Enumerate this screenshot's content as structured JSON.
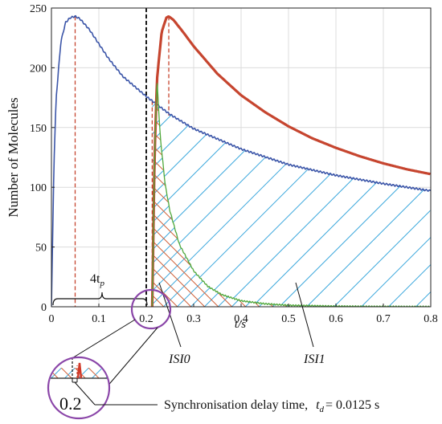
{
  "chart_data": {
    "type": "line",
    "ylabel": "Number of Molecules",
    "xlabel": "t/s",
    "xlim": [
      0,
      0.8
    ],
    "ylim": [
      0,
      250
    ],
    "x_ticks": [
      "0",
      "0.1",
      "0.2",
      "0.3",
      "0.4",
      "0.5",
      "0.6",
      "0.7",
      "0.8"
    ],
    "y_ticks": [
      "0",
      "50",
      "100",
      "150",
      "200",
      "250"
    ],
    "grid": true,
    "series": [
      {
        "color": "#3b55a8",
        "peak_t": 0.05,
        "peak": 243,
        "x": [
          0,
          0.005,
          0.01,
          0.02,
          0.03,
          0.04,
          0.05,
          0.06,
          0.08,
          0.1,
          0.12,
          0.15,
          0.2,
          0.25,
          0.3,
          0.4,
          0.5,
          0.6,
          0.7,
          0.8
        ],
        "y": [
          0,
          115,
          175,
          222,
          238,
          242,
          243,
          241,
          232,
          220,
          208,
          193,
          176,
          161,
          149,
          132,
          119,
          110,
          103,
          97
        ]
      },
      {
        "color": "#c6452f",
        "peak_t": 0.2475,
        "peak": 243,
        "x": [
          0.2125,
          0.2175,
          0.2225,
          0.2325,
          0.2425,
          0.2475,
          0.2575,
          0.2775,
          0.3,
          0.35,
          0.4,
          0.45,
          0.5,
          0.55,
          0.6,
          0.65,
          0.7,
          0.75,
          0.8
        ],
        "y": [
          0,
          125,
          190,
          230,
          242,
          243,
          240,
          230,
          218,
          195,
          177,
          163,
          151,
          141,
          133,
          126,
          120,
          115,
          111
        ]
      },
      {
        "color": "#4fa83a",
        "x": [
          0.2125,
          0.2175,
          0.2225,
          0.23,
          0.24,
          0.25,
          0.27,
          0.3,
          0.33,
          0.36,
          0.4,
          0.45,
          0.5,
          0.6,
          0.7,
          0.8
        ],
        "y": [
          0,
          125,
          190,
          140,
          102,
          80,
          52,
          30,
          17,
          10,
          5,
          2.5,
          1.2,
          0.4,
          0.15,
          0.05
        ]
      }
    ],
    "markers": [
      {
        "x": 0.05,
        "color": "#c6452f"
      },
      {
        "x": 0.2,
        "color": "#000000"
      },
      {
        "x": 0.2125,
        "color": "#c6452f"
      }
    ],
    "annotations": {
      "span_label": "4t",
      "span_sub": "p",
      "isi0": "ISI0",
      "isi1": "ISI1",
      "zoom_value": "0.2",
      "sync_prefix": "Synchronisation delay time,",
      "sync_t": "t",
      "sync_sub": "d",
      "sync_value": "= 0.0125 s"
    }
  }
}
